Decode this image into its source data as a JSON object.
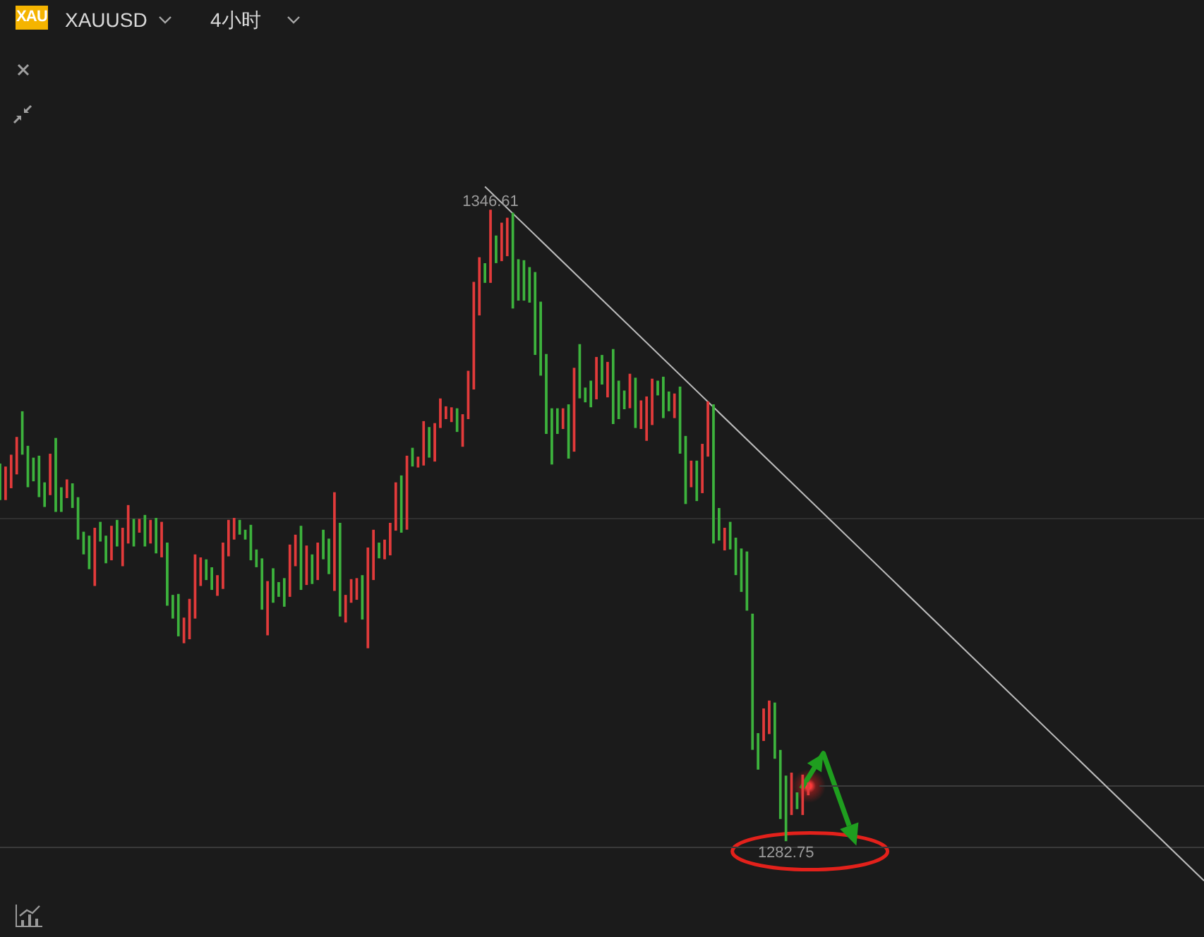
{
  "chart_data": {
    "type": "candlestick",
    "title": "XAUUSD",
    "subtitle": "4小时",
    "annotations": [
      "XAU",
      {
        "text": "1346.61",
        "y": 1346.61
      },
      {
        "text": "1282.75",
        "y": 1282.75
      }
    ],
    "categories": [
      null,
      null,
      null,
      null,
      null,
      null,
      null,
      null,
      null,
      null,
      null,
      null,
      null,
      null,
      null,
      null,
      null,
      null,
      null,
      null,
      null,
      null,
      null,
      null,
      null,
      null,
      null,
      null,
      null,
      null,
      null,
      null,
      null,
      null,
      null,
      null,
      null,
      null,
      null,
      null,
      null,
      null,
      null,
      null,
      null,
      null,
      null,
      null,
      null,
      null,
      null,
      null,
      null,
      null,
      null,
      null,
      null,
      null,
      null,
      null,
      null,
      null,
      null,
      null,
      null,
      null,
      null,
      null,
      null,
      null,
      null,
      null,
      null,
      null,
      null,
      null,
      null,
      null,
      null,
      null,
      null,
      null,
      null,
      null,
      null,
      null,
      null,
      null,
      null,
      null,
      null,
      null,
      null,
      null,
      null,
      null,
      null,
      null,
      null,
      null,
      null,
      null,
      null,
      null,
      null,
      null,
      null,
      null,
      null,
      null,
      null,
      null,
      null,
      null,
      null,
      null,
      null,
      null,
      null,
      null,
      null,
      null,
      null,
      null,
      null,
      null,
      null,
      null,
      null,
      null,
      null,
      null,
      null,
      null,
      null,
      null,
      null,
      null,
      null,
      null,
      null,
      null,
      null,
      null,
      null,
      null,
      null,
      null,
      null,
      null,
      null,
      null,
      null,
      null,
      null,
      null,
      null,
      null,
      null,
      null,
      null,
      null,
      null,
      null,
      null,
      null,
      null,
      null,
      null,
      null,
      null,
      null,
      null,
      null,
      null,
      null,
      null,
      null,
      null,
      null,
      null,
      null,
      null,
      null,
      null,
      null,
      null,
      null,
      null,
      null,
      null,
      null,
      null,
      null,
      null,
      null,
      null,
      null,
      null,
      null,
      null,
      null,
      null,
      null,
      null,
      null,
      null,
      null,
      null,
      null,
      null,
      null,
      null,
      null,
      null,
      null,
      null
    ],
    "ohlc": [
      [
        1320.9,
        1320.9,
        1317.3,
        1317.3
      ],
      [
        1317.3,
        1320.6,
        1317.3,
        1320.6
      ],
      [
        1318.5,
        1321.8,
        1318.5,
        1321.8
      ],
      [
        1319.9,
        1323.6,
        1319.9,
        1323.6
      ],
      [
        1326.2,
        1326.2,
        1321.9,
        1321.9
      ],
      [
        1322.7,
        1322.7,
        1318.6,
        1318.6
      ],
      [
        1321.5,
        1321.5,
        1319.2,
        1319.2
      ],
      [
        1321.7,
        1321.7,
        1317.6,
        1317.6
      ],
      [
        1319.0,
        1319.0,
        1316.6,
        1316.6
      ],
      [
        1317.8,
        1321.9,
        1317.8,
        1321.9
      ],
      [
        1323.5,
        1323.5,
        1316.1,
        1316.1
      ],
      [
        1318.5,
        1318.5,
        1316.1,
        1316.1
      ],
      [
        1317.5,
        1319.3,
        1317.5,
        1319.3
      ],
      [
        1318.9,
        1318.9,
        1316.5,
        1316.5
      ],
      [
        1317.5,
        1317.5,
        1313.3,
        1313.3
      ],
      [
        1314.0,
        1314.0,
        1311.8,
        1311.8
      ],
      [
        1313.6,
        1313.6,
        1310.3,
        1310.3
      ],
      [
        1308.6,
        1314.4,
        1308.6,
        1314.4
      ],
      [
        1315.0,
        1315.0,
        1313.1,
        1313.1
      ],
      [
        1313.6,
        1313.6,
        1310.9,
        1310.9
      ],
      [
        1311.2,
        1314.6,
        1311.2,
        1314.6
      ],
      [
        1315.2,
        1315.2,
        1312.6,
        1312.6
      ],
      [
        1310.6,
        1314.4,
        1310.6,
        1314.4
      ],
      [
        1312.9,
        1316.7,
        1312.9,
        1316.7
      ],
      [
        1315.3,
        1315.3,
        1312.6,
        1312.6
      ],
      [
        1314.0,
        1315.3,
        1314.0,
        1315.3
      ],
      [
        1315.7,
        1315.7,
        1312.6,
        1312.6
      ],
      [
        1312.9,
        1315.2,
        1312.9,
        1315.2
      ],
      [
        1315.4,
        1315.4,
        1311.9,
        1311.9
      ],
      [
        1311.5,
        1315.0,
        1311.5,
        1315.0
      ],
      [
        1312.9,
        1312.9,
        1306.6,
        1306.6
      ],
      [
        1307.6,
        1307.6,
        1305.3,
        1305.3
      ],
      [
        1307.7,
        1307.7,
        1303.5,
        1303.5
      ],
      [
        1302.8,
        1305.3,
        1302.8,
        1305.3
      ],
      [
        1303.2,
        1307.2,
        1303.2,
        1307.2
      ],
      [
        1305.3,
        1311.7,
        1305.3,
        1311.7
      ],
      [
        1308.6,
        1311.4,
        1308.6,
        1311.4
      ],
      [
        1311.2,
        1311.2,
        1309.2,
        1309.2
      ],
      [
        1310.4,
        1310.4,
        1308.2,
        1308.2
      ],
      [
        1307.6,
        1309.6,
        1307.6,
        1309.6
      ],
      [
        1308.3,
        1312.9,
        1308.3,
        1312.9
      ],
      [
        1311.6,
        1315.2,
        1311.6,
        1315.2
      ],
      [
        1313.3,
        1315.4,
        1313.3,
        1315.4
      ],
      [
        1315.2,
        1315.2,
        1313.8,
        1313.8
      ],
      [
        1314.2,
        1314.2,
        1313.3,
        1313.3
      ],
      [
        1314.7,
        1314.7,
        1311.2,
        1311.2
      ],
      [
        1312.2,
        1312.2,
        1310.5,
        1310.5
      ],
      [
        1311.3,
        1311.3,
        1306.2,
        1306.2
      ],
      [
        1303.6,
        1309.0,
        1303.6,
        1309.0
      ],
      [
        1310.3,
        1310.3,
        1306.9,
        1306.9
      ],
      [
        1308.9,
        1308.9,
        1307.5,
        1307.5
      ],
      [
        1309.3,
        1309.3,
        1306.5,
        1306.5
      ],
      [
        1307.5,
        1312.7,
        1307.5,
        1312.7
      ],
      [
        1310.6,
        1313.7,
        1310.6,
        1313.7
      ],
      [
        1314.6,
        1314.6,
        1308.2,
        1308.2
      ],
      [
        1308.7,
        1312.6,
        1308.7,
        1312.6
      ],
      [
        1311.7,
        1311.7,
        1308.8,
        1308.8
      ],
      [
        1309.2,
        1312.9,
        1309.2,
        1312.9
      ],
      [
        1314.2,
        1314.2,
        1311.3,
        1311.3
      ],
      [
        1313.3,
        1313.3,
        1309.8,
        1309.8
      ],
      [
        1308.1,
        1318.0,
        1308.1,
        1318.0
      ],
      [
        1314.9,
        1314.9,
        1305.5,
        1305.5
      ],
      [
        1304.9,
        1307.6,
        1304.9,
        1307.6
      ],
      [
        1306.9,
        1309.2,
        1306.9,
        1309.2
      ],
      [
        1307.2,
        1309.3,
        1307.2,
        1309.3
      ],
      [
        1309.6,
        1309.6,
        1305.2,
        1305.2
      ],
      [
        1302.3,
        1312.4,
        1302.3,
        1312.4
      ],
      [
        1309.2,
        1314.2,
        1309.2,
        1314.2
      ],
      [
        1312.9,
        1312.9,
        1311.4,
        1311.4
      ],
      [
        1311.3,
        1313.2,
        1311.3,
        1313.2
      ],
      [
        1311.7,
        1314.9,
        1311.7,
        1314.9
      ],
      [
        1314.2,
        1319.0,
        1314.2,
        1319.0
      ],
      [
        1319.7,
        1319.7,
        1314.0,
        1314.0
      ],
      [
        1314.3,
        1321.7,
        1314.3,
        1321.7
      ],
      [
        1322.5,
        1322.5,
        1320.7,
        1320.7
      ],
      [
        1320.6,
        1321.6,
        1320.6,
        1321.6
      ],
      [
        1320.8,
        1325.2,
        1320.8,
        1325.2
      ],
      [
        1324.6,
        1324.6,
        1321.6,
        1321.6
      ],
      [
        1321.2,
        1325.0,
        1321.2,
        1325.0
      ],
      [
        1324.6,
        1327.5,
        1324.6,
        1327.5
      ],
      [
        1325.5,
        1326.7,
        1325.5,
        1326.7
      ],
      [
        1325.2,
        1326.6,
        1325.2,
        1326.6
      ],
      [
        1326.5,
        1326.5,
        1324.2,
        1324.2
      ],
      [
        1322.7,
        1325.9,
        1322.7,
        1325.9
      ],
      [
        1325.5,
        1330.3,
        1325.5,
        1330.3
      ],
      [
        1328.5,
        1339.3,
        1328.5,
        1339.3
      ],
      [
        1336.0,
        1341.8,
        1336.0,
        1341.8
      ],
      [
        1341.2,
        1341.2,
        1339.3,
        1339.3
      ],
      [
        1339.3,
        1346.61,
        1339.3,
        1346.61
      ],
      [
        1344.0,
        1344.0,
        1341.3,
        1341.3
      ],
      [
        1341.5,
        1345.3,
        1341.5,
        1345.3
      ],
      [
        1342.0,
        1345.8,
        1342.0,
        1345.8
      ],
      [
        1346.3,
        1346.3,
        1336.7,
        1336.7
      ],
      [
        1341.6,
        1341.6,
        1337.5,
        1337.5
      ],
      [
        1341.5,
        1341.5,
        1337.5,
        1337.5
      ],
      [
        1340.8,
        1340.8,
        1337.3,
        1337.3
      ],
      [
        1340.3,
        1340.3,
        1332.0,
        1332.0
      ],
      [
        1337.3,
        1337.3,
        1329.9,
        1329.9
      ],
      [
        1332.0,
        1332.0,
        1324.0,
        1324.0
      ],
      [
        1326.5,
        1326.5,
        1320.9,
        1320.9
      ],
      [
        1326.5,
        1326.5,
        1324.0,
        1324.0
      ],
      [
        1324.5,
        1326.5,
        1324.5,
        1326.5
      ],
      [
        1326.9,
        1326.9,
        1321.5,
        1321.5
      ],
      [
        1322.2,
        1330.6,
        1322.2,
        1330.6
      ],
      [
        1333.0,
        1333.0,
        1327.6,
        1327.6
      ],
      [
        1328.6,
        1328.6,
        1327.2,
        1327.2
      ],
      [
        1329.3,
        1329.3,
        1326.7,
        1326.7
      ],
      [
        1327.5,
        1331.7,
        1327.5,
        1331.7
      ],
      [
        1331.9,
        1331.9,
        1329.0,
        1329.0
      ],
      [
        1327.7,
        1331.2,
        1327.7,
        1331.2
      ],
      [
        1332.5,
        1332.5,
        1325.0,
        1325.0
      ],
      [
        1329.3,
        1329.3,
        1325.5,
        1325.5
      ],
      [
        1328.3,
        1328.3,
        1326.5,
        1326.5
      ],
      [
        1326.6,
        1330.0,
        1326.6,
        1330.0
      ],
      [
        1329.6,
        1329.6,
        1324.6,
        1324.6
      ],
      [
        1324.5,
        1327.3,
        1324.5,
        1327.3
      ],
      [
        1323.3,
        1327.7,
        1323.3,
        1327.7
      ],
      [
        1324.9,
        1329.5,
        1324.9,
        1329.5
      ],
      [
        1329.3,
        1329.3,
        1327.9,
        1327.9
      ],
      [
        1329.7,
        1329.7,
        1325.6,
        1325.6
      ],
      [
        1328.2,
        1328.2,
        1326.3,
        1326.3
      ],
      [
        1325.6,
        1328.0,
        1325.6,
        1328.0
      ],
      [
        1328.7,
        1328.7,
        1322.0,
        1322.0
      ],
      [
        1323.7,
        1323.7,
        1316.9,
        1316.9
      ],
      [
        1318.6,
        1321.2,
        1318.6,
        1321.2
      ],
      [
        1321.2,
        1321.2,
        1317.2,
        1317.2
      ],
      [
        1318.0,
        1322.9,
        1318.0,
        1322.9
      ],
      [
        1321.7,
        1327.2,
        1321.7,
        1327.2
      ],
      [
        1326.9,
        1326.9,
        1312.9,
        1312.9
      ],
      [
        1316.4,
        1316.4,
        1313.2,
        1313.2
      ],
      [
        1312.2,
        1314.4,
        1312.2,
        1314.4
      ],
      [
        1315.0,
        1315.0,
        1312.3,
        1312.3
      ],
      [
        1313.4,
        1313.4,
        1309.7,
        1309.7
      ],
      [
        1312.3,
        1312.3,
        1308.0,
        1308.0
      ],
      [
        1312.0,
        1312.0,
        1306.1,
        1306.1
      ],
      [
        1305.7,
        1305.7,
        1292.0,
        1292.0
      ],
      [
        1293.6,
        1293.6,
        1290.0,
        1290.0
      ],
      [
        1292.9,
        1296.1,
        1292.9,
        1296.1
      ],
      [
        1293.6,
        1296.9,
        1293.6,
        1296.9
      ],
      [
        1296.7,
        1296.7,
        1291.1,
        1291.1
      ],
      [
        1291.9,
        1291.9,
        1285.0,
        1285.0
      ],
      [
        1289.3,
        1289.3,
        1282.75,
        1282.75
      ],
      [
        1285.4,
        1289.6,
        1285.4,
        1289.6
      ],
      [
        1287.6,
        1287.6,
        1286.0,
        1286.0
      ],
      [
        1285.4,
        1289.4,
        1285.4,
        1289.4
      ],
      [
        1287.4,
        1288.6,
        1287.4,
        1288.6
      ],
      null,
      null,
      null,
      null,
      null,
      null,
      null,
      null,
      null,
      null,
      null,
      null,
      null,
      null,
      null,
      null,
      null,
      null,
      null,
      null,
      null,
      null,
      null,
      null,
      null,
      null,
      null,
      null,
      null,
      null,
      null,
      null,
      null,
      null,
      null,
      null,
      null,
      null,
      null,
      null,
      null,
      null,
      null,
      null,
      null,
      null,
      null,
      null,
      null,
      null,
      null,
      null,
      null,
      null,
      null,
      null,
      null,
      null,
      null,
      null,
      null,
      null,
      null,
      null,
      null,
      null,
      null,
      null,
      null,
      null,
      null
    ],
    "colors": [
      "#3db33d",
      "#e23b3b",
      "#e23b3b",
      "#e23b3b",
      "#3db33d",
      "#3db33d",
      "#3db33d",
      "#3db33d",
      "#3db33d",
      "#e23b3b",
      "#3db33d",
      "#3db33d",
      "#e23b3b",
      "#3db33d",
      "#3db33d",
      "#3db33d",
      "#3db33d",
      "#e23b3b",
      "#3db33d",
      "#3db33d",
      "#e23b3b",
      "#3db33d",
      "#e23b3b",
      "#e23b3b",
      "#3db33d",
      "#e23b3b",
      "#3db33d",
      "#e23b3b",
      "#3db33d",
      "#e23b3b",
      "#3db33d",
      "#3db33d",
      "#3db33d",
      "#e23b3b",
      "#e23b3b",
      "#e23b3b",
      "#e23b3b",
      "#3db33d",
      "#3db33d",
      "#e23b3b",
      "#e23b3b",
      "#e23b3b",
      "#e23b3b",
      "#3db33d",
      "#3db33d",
      "#3db33d",
      "#3db33d",
      "#3db33d",
      "#e23b3b",
      "#3db33d",
      "#3db33d",
      "#3db33d",
      "#e23b3b",
      "#e23b3b",
      "#3db33d",
      "#e23b3b",
      "#3db33d",
      "#e23b3b",
      "#3db33d",
      "#3db33d",
      "#e23b3b",
      "#3db33d",
      "#e23b3b",
      "#e23b3b",
      "#e23b3b",
      "#3db33d",
      "#e23b3b",
      "#e23b3b",
      "#3db33d",
      "#e23b3b",
      "#e23b3b",
      "#e23b3b",
      "#3db33d",
      "#e23b3b",
      "#3db33d",
      "#e23b3b",
      "#e23b3b",
      "#3db33d",
      "#e23b3b",
      "#e23b3b",
      "#e23b3b",
      "#e23b3b",
      "#3db33d",
      "#e23b3b",
      "#e23b3b",
      "#e23b3b",
      "#e23b3b",
      "#3db33d",
      "#e23b3b",
      "#3db33d",
      "#e23b3b",
      "#e23b3b",
      "#3db33d",
      "#3db33d",
      "#3db33d",
      "#3db33d",
      "#3db33d",
      "#3db33d",
      "#3db33d",
      "#3db33d",
      "#3db33d",
      "#e23b3b",
      "#3db33d",
      "#e23b3b",
      "#3db33d",
      "#3db33d",
      "#3db33d",
      "#e23b3b",
      "#3db33d",
      "#e23b3b",
      "#3db33d",
      "#3db33d",
      "#3db33d",
      "#e23b3b",
      "#3db33d",
      "#e23b3b",
      "#e23b3b",
      "#e23b3b",
      "#3db33d",
      "#3db33d",
      "#3db33d",
      "#e23b3b",
      "#3db33d",
      "#3db33d",
      "#e23b3b",
      "#3db33d",
      "#e23b3b",
      "#e23b3b",
      "#3db33d",
      "#3db33d",
      "#e23b3b",
      "#3db33d",
      "#3db33d",
      "#3db33d",
      "#3db33d",
      "#3db33d",
      "#3db33d",
      "#e23b3b",
      "#e23b3b",
      "#3db33d",
      "#3db33d",
      "#3db33d",
      "#e23b3b",
      "#3db33d",
      "#e23b3b",
      "#e23b3b",
      null,
      null,
      null,
      null,
      null,
      null,
      null,
      null,
      null,
      null,
      null,
      null,
      null,
      null,
      null,
      null,
      null,
      null,
      null,
      null,
      null,
      null,
      null,
      null,
      null,
      null,
      null,
      null,
      null,
      null,
      null,
      null,
      null,
      null,
      null,
      null,
      null,
      null,
      null,
      null,
      null,
      null,
      null,
      null,
      null,
      null,
      null,
      null,
      null,
      null,
      null,
      null,
      null,
      null,
      null,
      null,
      null,
      null,
      null,
      null,
      null,
      null,
      null,
      null,
      null,
      null,
      null,
      null,
      null,
      null,
      null
    ],
    "series": [
      {
        "type": "line",
        "color": "#bcbcbc",
        "values": [
          null,
          null,
          null,
          null,
          null,
          null,
          null,
          null,
          null,
          null,
          null,
          null,
          null,
          null,
          null,
          null,
          null,
          null,
          null,
          null,
          null,
          null,
          null,
          null,
          null,
          null,
          null,
          null,
          null,
          null,
          null,
          null,
          null,
          null,
          null,
          null,
          null,
          null,
          null,
          null,
          null,
          null,
          null,
          null,
          null,
          null,
          null,
          null,
          null,
          null,
          null,
          null,
          null,
          null,
          null,
          null,
          null,
          null,
          null,
          null,
          null,
          null,
          null,
          null,
          null,
          null,
          null,
          null,
          null,
          null,
          null,
          null,
          null,
          null,
          null,
          null,
          null,
          null,
          null,
          null,
          null,
          null,
          null,
          null,
          null,
          null,
          null,
          1349.0,
          null,
          null,
          null,
          null,
          null,
          null,
          null,
          null,
          null,
          null,
          null,
          null,
          null,
          null,
          null,
          null,
          null,
          null,
          null,
          null,
          null,
          null,
          null,
          null,
          null,
          null,
          null,
          null,
          null,
          null,
          null,
          null,
          null,
          null,
          null,
          null,
          null,
          null,
          null,
          null,
          null,
          null,
          null,
          null,
          null,
          null,
          null,
          null,
          null,
          null,
          null,
          null,
          null,
          null,
          null,
          null,
          null,
          null,
          null,
          null,
          null,
          null,
          null,
          null,
          null,
          null,
          null,
          null,
          null,
          null,
          null,
          null,
          null,
          null,
          null,
          null,
          null,
          null,
          null,
          null,
          null,
          null,
          null,
          null,
          null,
          null,
          null,
          null,
          null,
          null,
          null,
          null,
          null,
          null,
          null,
          null,
          null,
          null,
          null,
          null,
          null,
          null,
          null,
          null,
          null,
          null,
          null,
          null,
          null,
          null,
          null,
          null,
          null,
          null,
          null,
          null,
          null,
          null,
          null,
          null,
          null,
          null,
          null,
          null,
          null,
          null,
          null,
          null,
          1278.7
        ]
      },
      {
        "type": "line",
        "color": "#3c3c3c",
        "values": [
          null,
          null,
          null,
          null,
          null,
          null,
          null,
          null,
          null,
          null,
          null,
          null,
          null,
          null,
          null,
          null,
          null,
          null,
          null,
          null,
          null,
          null,
          null,
          null,
          null,
          null,
          null,
          null,
          null,
          null,
          null,
          null,
          null,
          null,
          null,
          null,
          null,
          null,
          null,
          null,
          null,
          null,
          null,
          null,
          null,
          null,
          null,
          null,
          null,
          null,
          null,
          null,
          null,
          null,
          null,
          null,
          null,
          null,
          null,
          null,
          null,
          null,
          null,
          null,
          null,
          null,
          null,
          null,
          null,
          null,
          null,
          null,
          null,
          null,
          null,
          null,
          null,
          null,
          null,
          null,
          null,
          null,
          null,
          null,
          null,
          null,
          null,
          null,
          null,
          null,
          null,
          null,
          null,
          null,
          null,
          null,
          null,
          null,
          null,
          null,
          null,
          null,
          null,
          null,
          null,
          null,
          null,
          null,
          null,
          null,
          null,
          null,
          null,
          null,
          null,
          null,
          null,
          null,
          null,
          null,
          null,
          null,
          null,
          null,
          null,
          null,
          null,
          null,
          null,
          null,
          null,
          null,
          null,
          null,
          null,
          null,
          null,
          null,
          null,
          null,
          null,
          null,
          null,
          null,
          null,
          null,
          null,
          1288.3,
          null,
          null,
          null,
          null,
          null,
          null,
          null,
          null,
          null,
          null,
          null,
          null,
          null,
          null,
          null,
          null,
          null,
          null,
          null,
          null,
          null,
          null,
          null,
          null,
          null,
          null,
          null,
          null,
          null,
          null,
          null,
          null,
          null,
          null,
          null,
          null,
          null,
          null,
          null,
          null,
          null,
          null,
          null,
          null,
          null,
          null,
          null,
          null,
          null,
          null,
          null,
          null,
          null,
          null,
          null,
          null,
          null,
          null,
          null,
          null,
          null,
          null,
          null,
          null,
          null,
          null,
          null,
          null,
          1288.3
        ]
      }
    ],
    "ref_lines": [
      {
        "axis": "y",
        "value": 1315.4,
        "color": "#303030"
      },
      {
        "axis": "y",
        "value": 1282.1,
        "color": "#3a3a3a"
      }
    ],
    "ylim": [
      1273.0,
      1367.9
    ],
    "tick_labels": false
  }
}
